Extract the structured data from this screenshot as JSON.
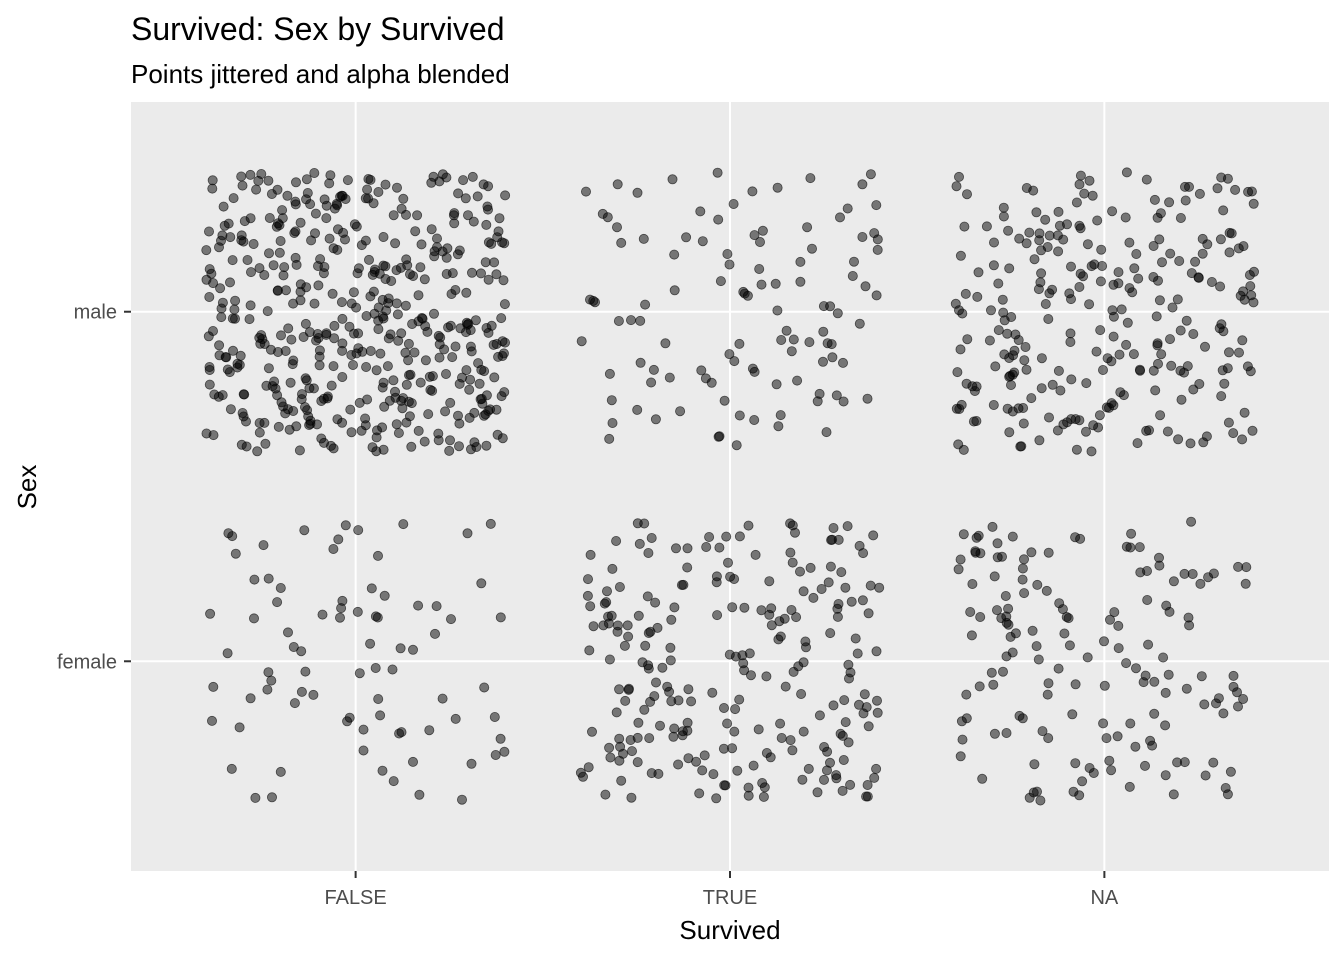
{
  "chart_data": {
    "type": "scatter",
    "title": "Survived: Sex by Survived",
    "subtitle": "Points jittered and alpha blended",
    "xlabel": "Survived",
    "ylabel": "Sex",
    "x_categories": [
      "FALSE",
      "TRUE",
      "NA"
    ],
    "y_categories": [
      "female",
      "male"
    ],
    "jitter": {
      "x": 0.4,
      "y": 0.4
    },
    "point_color": "#000000",
    "point_alpha": 0.5,
    "grid": true,
    "panel_background": "#ebebeb",
    "groups": [
      {
        "x": "FALSE",
        "y": "male",
        "count": 468
      },
      {
        "x": "FALSE",
        "y": "female",
        "count": 81
      },
      {
        "x": "TRUE",
        "y": "male",
        "count": 109
      },
      {
        "x": "TRUE",
        "y": "female",
        "count": 233
      },
      {
        "x": "NA",
        "y": "male",
        "count": 266
      },
      {
        "x": "NA",
        "y": "female",
        "count": 152
      }
    ]
  }
}
